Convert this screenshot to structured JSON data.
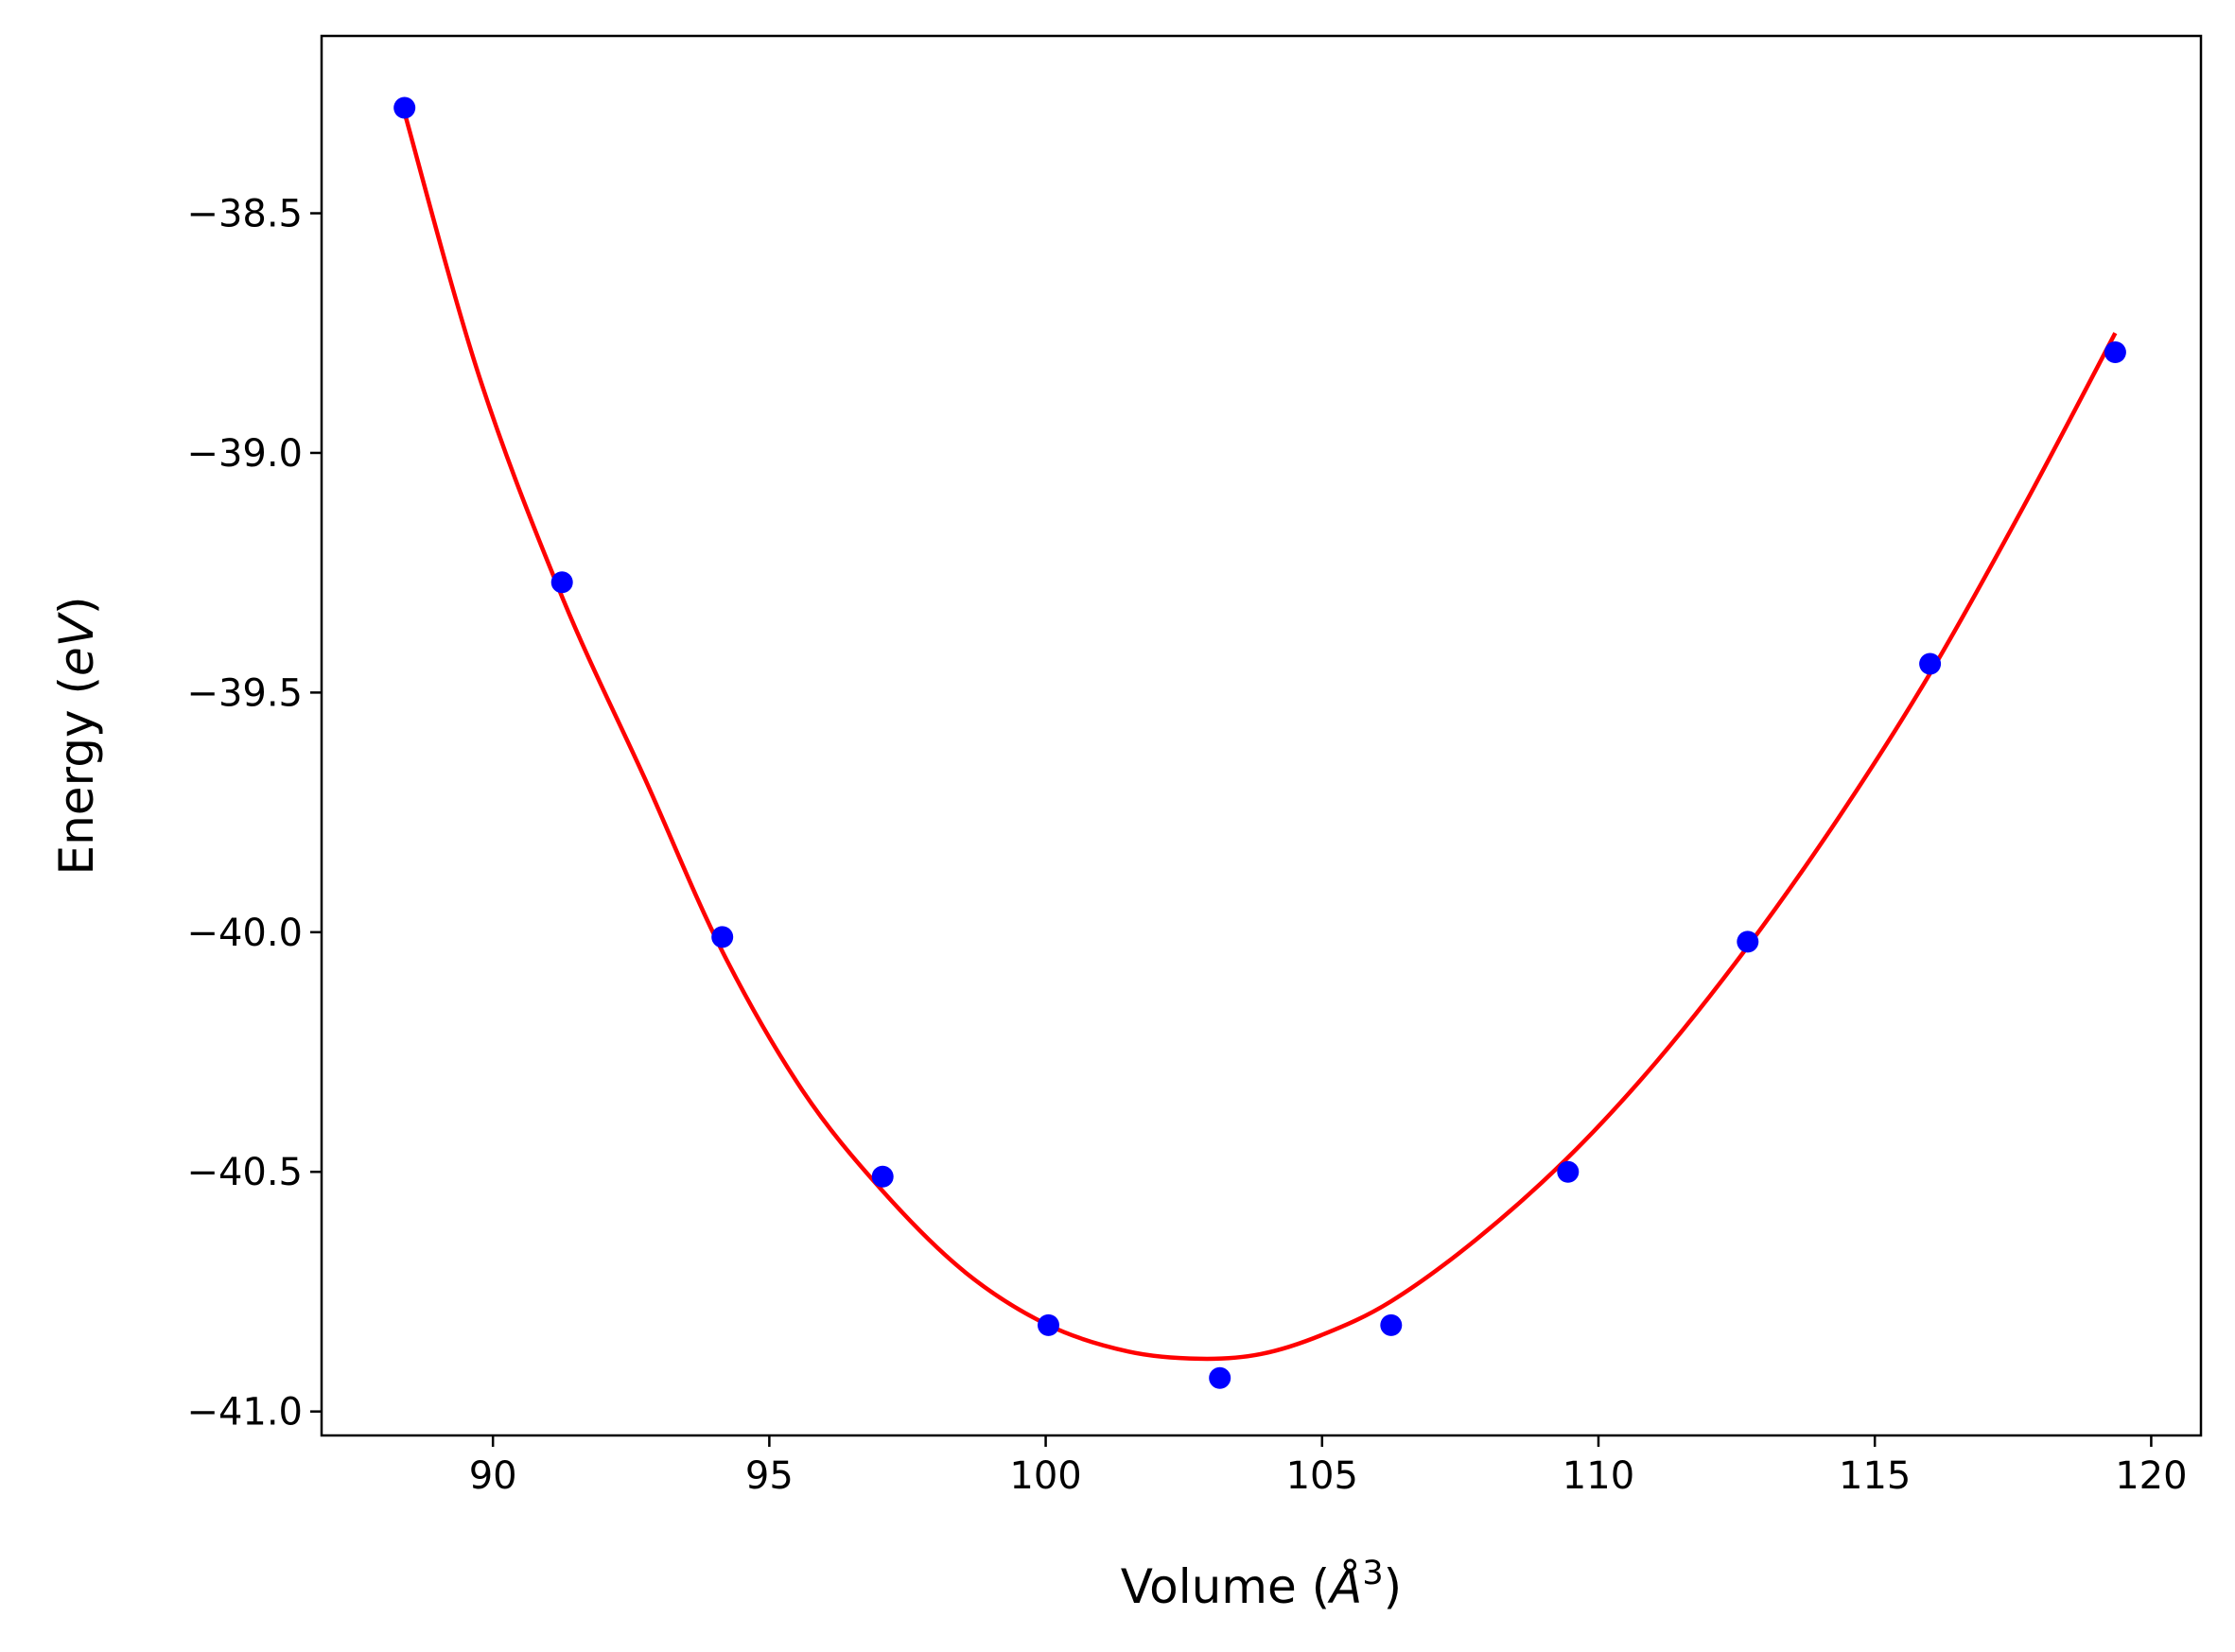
{
  "chart_data": {
    "type": "scatter",
    "title": "",
    "xlabel": "Volume (Å³)",
    "ylabel": "Energy (eV)",
    "xlabel_parts": {
      "pre": "Volume (",
      "italic": "Å",
      "sup": "3",
      "post": ")"
    },
    "ylabel_parts": {
      "pre": "Energy (",
      "italic": "eV",
      "post": ")"
    },
    "xlim": [
      86.9,
      120.9
    ],
    "ylim": [
      -41.05,
      -38.13
    ],
    "xticks": [
      90,
      95,
      100,
      105,
      110,
      115,
      120
    ],
    "xtick_labels": [
      "90",
      "95",
      "100",
      "105",
      "110",
      "115",
      "120"
    ],
    "yticks": [
      -41.0,
      -40.5,
      -40.0,
      -39.5,
      -39.0,
      -38.5
    ],
    "ytick_labels": [
      "−41.0",
      "−40.5",
      "−40.0",
      "−39.5",
      "−39.0",
      "−38.5"
    ],
    "grid": false,
    "series": [
      {
        "kind": "points",
        "color": "#0000ff",
        "x": [
          88.4,
          91.25,
          94.15,
          97.05,
          100.05,
          103.15,
          106.25,
          109.45,
          112.7,
          116.0,
          119.35
        ],
        "y": [
          -38.28,
          -39.27,
          -40.01,
          -40.51,
          -40.82,
          -40.93,
          -40.82,
          -40.5,
          -40.02,
          -39.44,
          -38.79
        ]
      },
      {
        "kind": "fit-curve",
        "color": "#ff0000",
        "x": [
          88.4,
          89.75,
          91.25,
          92.75,
          94.15,
          95.6,
          97.05,
          98.55,
          100.05,
          101.5,
          102.8,
          103.9,
          105.0,
          106.25,
          107.8,
          109.45,
          111.05,
          112.7,
          114.35,
          116.0,
          117.7,
          119.35
        ],
        "y": [
          -38.29,
          -38.84,
          -39.3,
          -39.68,
          -40.04,
          -40.33,
          -40.54,
          -40.71,
          -40.82,
          -40.875,
          -40.89,
          -40.88,
          -40.84,
          -40.77,
          -40.64,
          -40.47,
          -40.27,
          -40.03,
          -39.76,
          -39.46,
          -39.11,
          -38.75
        ]
      }
    ]
  }
}
